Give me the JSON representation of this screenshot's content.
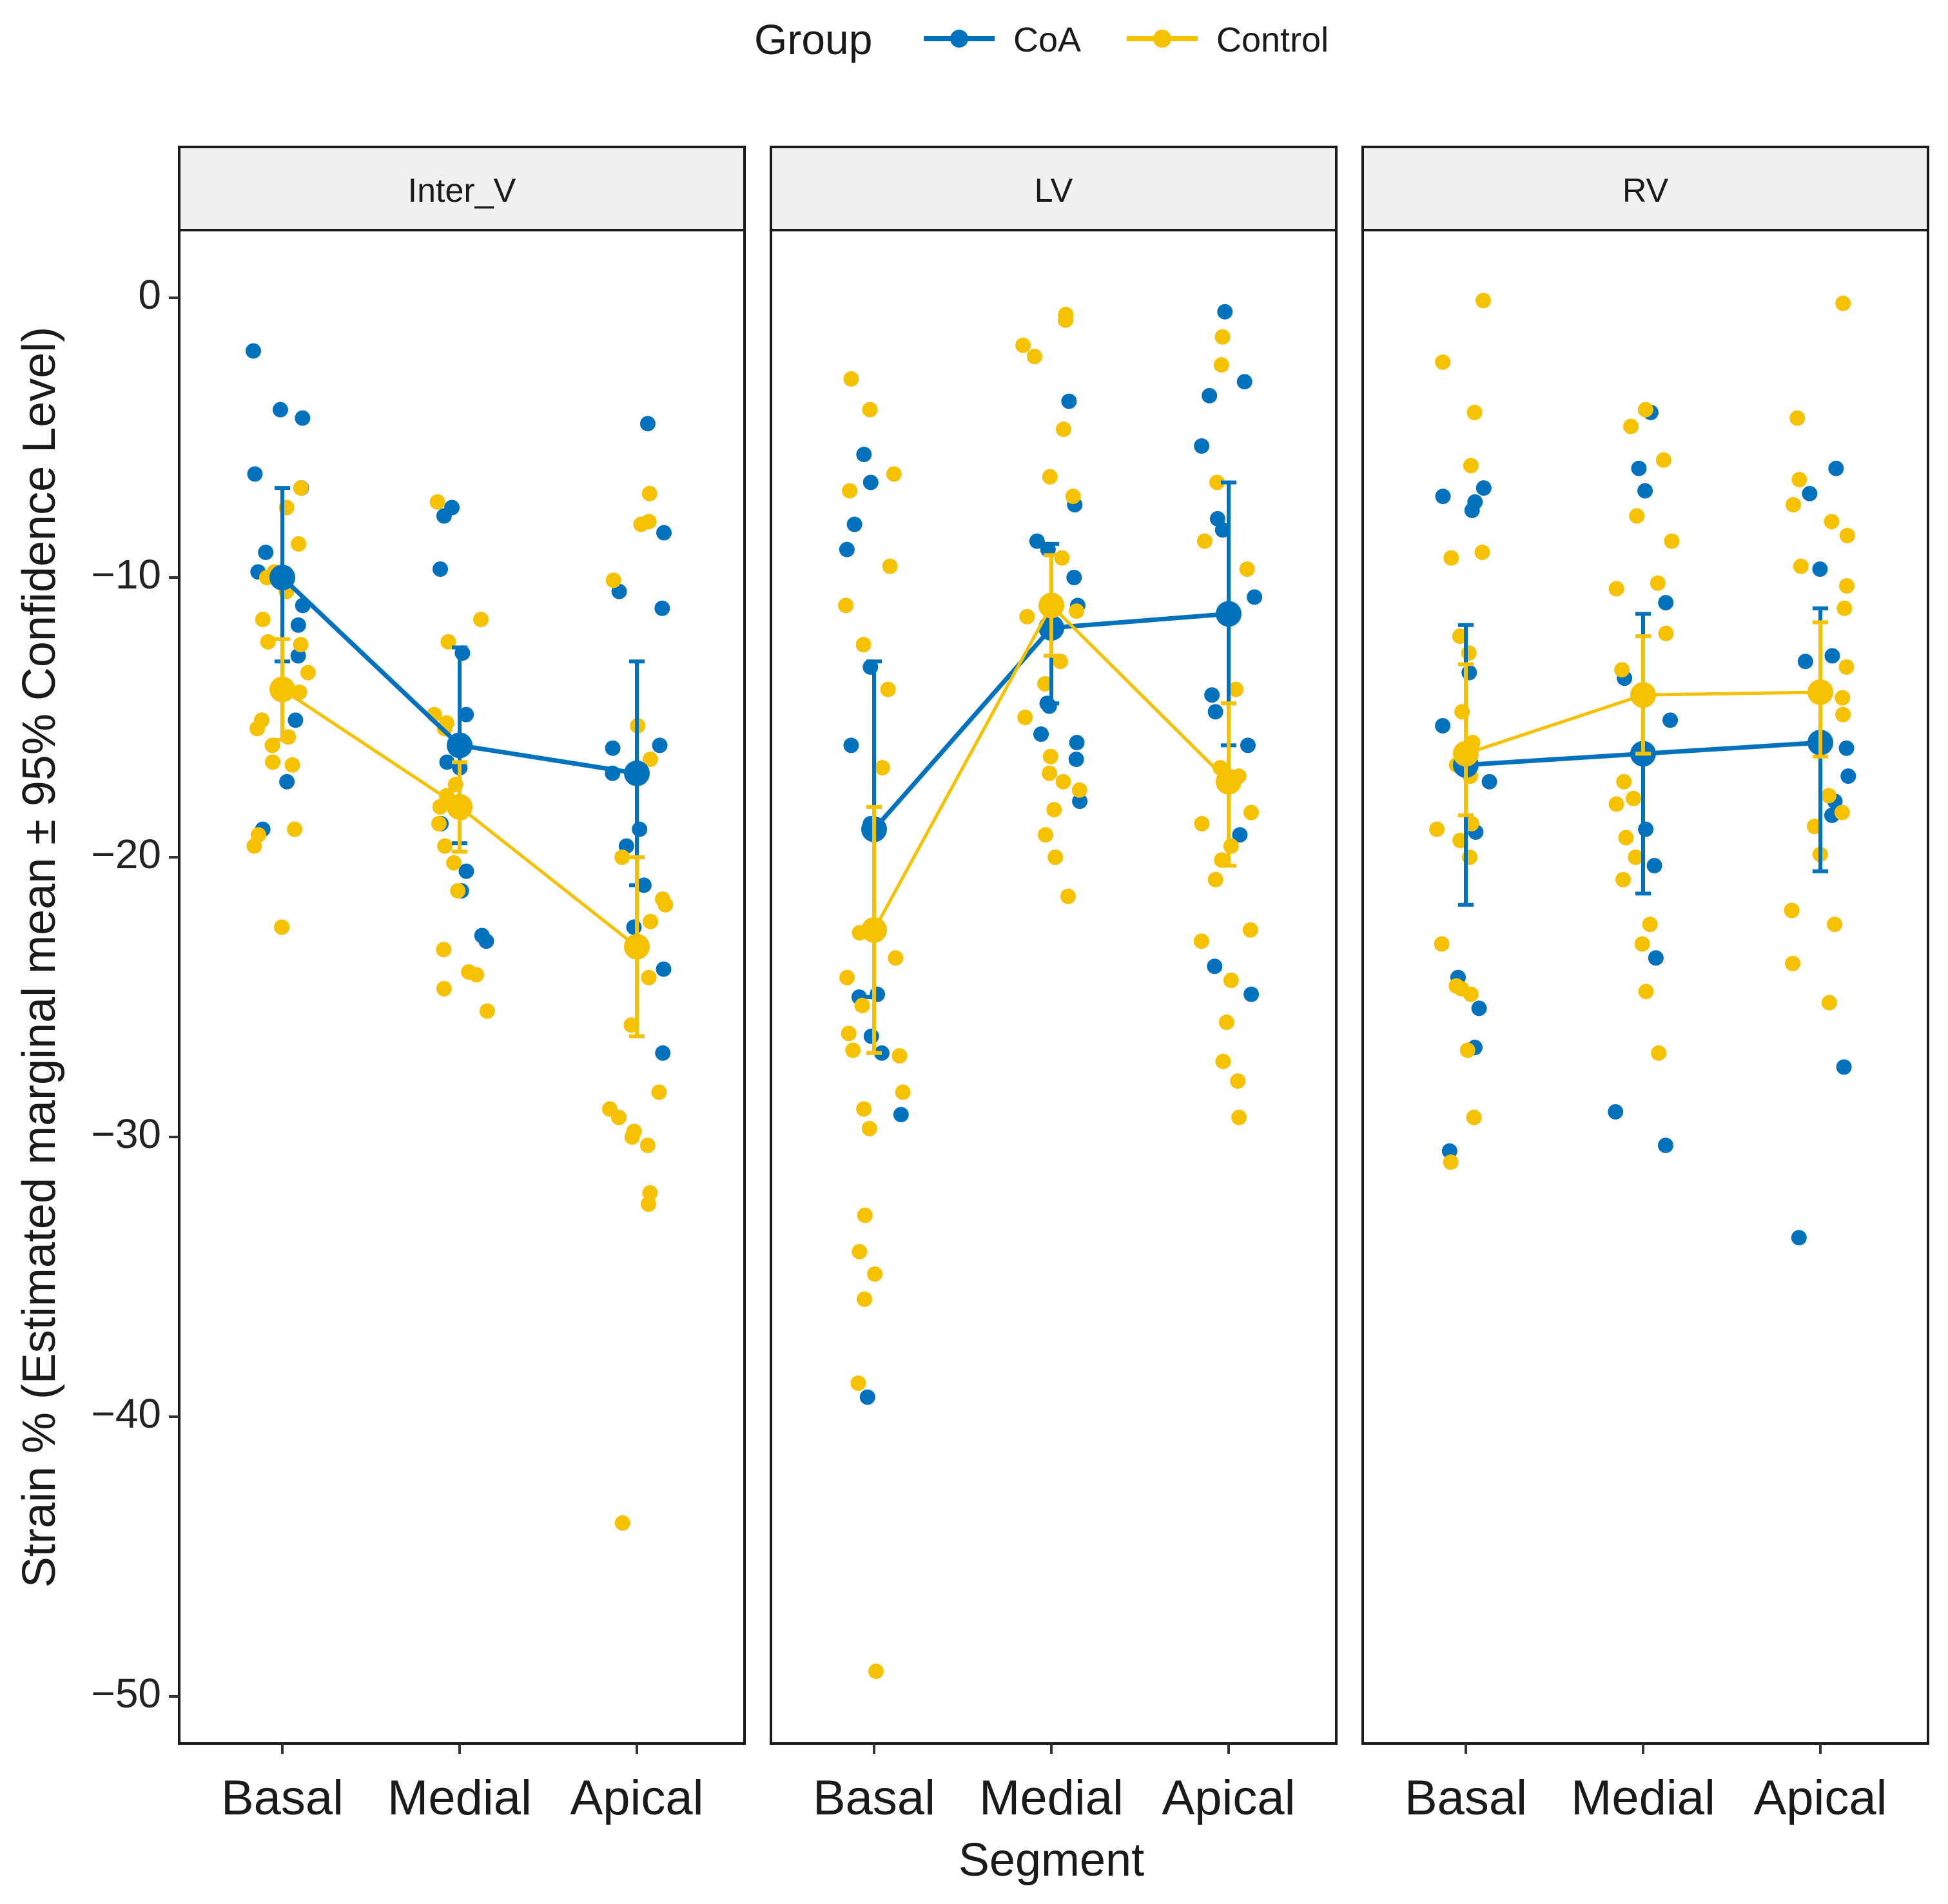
{
  "chart_data": {
    "type": "scatter",
    "title": "",
    "xlabel": "Segment",
    "ylabel": "Strain % (Estimated marginal mean ± 95% Confidence Level)",
    "ylim": [
      -52.5,
      2.5
    ],
    "yticks": [
      0,
      -10,
      -20,
      -30,
      -40,
      -50
    ],
    "ytick_labels": [
      "0",
      "−10",
      "−20",
      "−30",
      "−40",
      "−50"
    ],
    "grid": false,
    "legend": {
      "title": "Group",
      "position": "top",
      "entries": [
        "CoA",
        "Control"
      ]
    },
    "categories": [
      "Basal",
      "Medial",
      "Apical"
    ],
    "colors": {
      "CoA": "#0072bd",
      "Control": "#f5c100"
    },
    "facets": [
      {
        "name": "Inter_V",
        "series": [
          {
            "name": "CoA",
            "means": [
              -10.0,
              -16.0,
              -17.0
            ],
            "lower": [
              -13.0,
              -19.5,
              -21.0
            ],
            "upper": [
              -6.8,
              -12.5,
              -13.0
            ],
            "points": [
              [
                -1.9,
                -4.0,
                -4.3,
                -6.3,
                -6.8,
                -9.1,
                -9.8,
                -11.0,
                -11.7,
                -12.8,
                -15.1,
                -17.3,
                -19.0
              ],
              [
                -7.8,
                -7.5,
                -9.7,
                -12.7,
                -14.9,
                -16.6,
                -16.8,
                -18.8,
                -20.5,
                -21.2,
                -22.8,
                -23.0
              ],
              [
                -4.5,
                -8.4,
                -10.5,
                -11.1,
                -16.0,
                -16.1,
                -17.0,
                -19.0,
                -19.6,
                -21.0,
                -22.5,
                -24.0,
                -27.0
              ]
            ]
          },
          {
            "name": "Control",
            "means": [
              -14.0,
              -18.2,
              -23.2
            ],
            "lower": [
              -15.8,
              -19.8,
              -26.4
            ],
            "upper": [
              -12.2,
              -16.6,
              -20.0
            ],
            "points": [
              [
                -6.8,
                -7.5,
                -8.8,
                -9.8,
                -10.0,
                -10.5,
                -11.5,
                -12.3,
                -12.4,
                -13.4,
                -14.1,
                -15.1,
                -15.4,
                -15.7,
                -16.0,
                -16.6,
                -16.7,
                -19.0,
                -19.2,
                -19.6,
                -22.5
              ],
              [
                -7.3,
                -11.5,
                -12.3,
                -14.9,
                -15.2,
                -15.4,
                -17.4,
                -17.8,
                -18.2,
                -18.4,
                -18.8,
                -19.6,
                -20.2,
                -21.2,
                -23.3,
                -24.1,
                -24.2,
                -24.7,
                -25.5
              ],
              [
                -7.0,
                -8.0,
                -8.1,
                -10.1,
                -15.3,
                -16.5,
                -20.0,
                -21.5,
                -21.7,
                -22.3,
                -24.3,
                -26.0,
                -28.4,
                -29.0,
                -29.3,
                -29.8,
                -30.0,
                -30.3,
                -32.0,
                -32.4,
                -43.8
              ]
            ]
          }
        ]
      },
      {
        "name": "LV",
        "series": [
          {
            "name": "CoA",
            "means": [
              -19.0,
              -11.8,
              -11.3
            ],
            "lower": [
              -25.0,
              -14.5,
              -16.0
            ],
            "upper": [
              -13.0,
              -8.8,
              -6.6
            ],
            "points": [
              [
                -5.6,
                -6.6,
                -8.1,
                -9.0,
                -13.2,
                -16.0,
                -18.8,
                -24.9,
                -25.0,
                -26.4,
                -27.0,
                -29.2,
                -39.3
              ],
              [
                -3.7,
                -7.4,
                -8.7,
                -9.0,
                -10.0,
                -11.0,
                -14.5,
                -14.6,
                -15.6,
                -15.9,
                -16.5,
                -18.0
              ],
              [
                -0.5,
                -3.0,
                -3.5,
                -5.3,
                -7.9,
                -8.3,
                -10.7,
                -14.2,
                -16.0,
                -19.2,
                -23.9,
                -24.9,
                -14.8
              ]
            ]
          },
          {
            "name": "Control",
            "means": [
              -22.6,
              -11.0,
              -17.3
            ],
            "lower": [
              -27.0,
              -12.8,
              -20.3
            ],
            "upper": [
              -18.2,
              -9.2,
              -14.5
            ],
            "points": [
              [
                -2.9,
                -4.0,
                -6.3,
                -6.9,
                -9.6,
                -11.0,
                -12.4,
                -14.0,
                -16.8,
                -22.7,
                -23.6,
                -24.3,
                -25.3,
                -26.3,
                -26.9,
                -27.1,
                -28.4,
                -29.0,
                -29.7,
                -32.8,
                -34.1,
                -34.9,
                -35.8,
                -38.8,
                -49.1
              ],
              [
                -0.6,
                -0.8,
                -1.7,
                -2.1,
                -4.7,
                -6.4,
                -7.1,
                -9.3,
                -11.2,
                -11.4,
                -13.0,
                -13.8,
                -15.0,
                -16.4,
                -17.0,
                -17.3,
                -17.6,
                -18.3,
                -19.2,
                -20.0,
                -21.4
              ],
              [
                -1.4,
                -2.4,
                -6.6,
                -8.7,
                -9.7,
                -14.0,
                -16.8,
                -17.1,
                -18.4,
                -18.8,
                -19.6,
                -20.1,
                -20.8,
                -22.6,
                -23.0,
                -24.4,
                -25.9,
                -27.3,
                -28.0,
                -29.3
              ]
            ]
          }
        ]
      },
      {
        "name": "RV",
        "series": [
          {
            "name": "CoA",
            "means": [
              -16.7,
              -16.3,
              -15.9
            ],
            "lower": [
              -21.7,
              -21.3,
              -20.5
            ],
            "upper": [
              -11.7,
              -11.3,
              -11.1
            ],
            "points": [
              [
                -6.8,
                -7.1,
                -7.3,
                -7.6,
                -13.4,
                -15.3,
                -17.3,
                -19.1,
                -24.3,
                -25.4,
                -26.8,
                -30.5
              ],
              [
                -4.1,
                -6.1,
                -6.9,
                -10.9,
                -13.6,
                -15.1,
                -19.0,
                -20.3,
                -23.6,
                -29.1,
                -30.3
              ],
              [
                -6.1,
                -7.0,
                -9.7,
                -12.8,
                -13.0,
                -16.1,
                -17.1,
                -18.0,
                -18.5,
                -27.5,
                -33.6
              ]
            ]
          },
          {
            "name": "Control",
            "means": [
              -16.3,
              -14.2,
              -14.1
            ],
            "lower": [
              -18.5,
              -16.3,
              -16.4
            ],
            "upper": [
              -13.1,
              -12.1,
              -11.6
            ],
            "points": [
              [
                -0.1,
                -2.3,
                -4.1,
                -6.0,
                -9.1,
                -9.3,
                -12.1,
                -12.7,
                -14.8,
                -15.9,
                -16.7,
                -17.1,
                -18.8,
                -19.0,
                -19.4,
                -20.0,
                -23.1,
                -24.6,
                -24.7,
                -24.9,
                -26.9,
                -29.3,
                -30.9
              ],
              [
                -4.0,
                -4.6,
                -5.8,
                -7.8,
                -8.7,
                -10.2,
                -10.4,
                -12.0,
                -13.3,
                -17.3,
                -17.9,
                -18.1,
                -19.3,
                -20.0,
                -20.8,
                -22.4,
                -23.1,
                -24.8,
                -27.0
              ],
              [
                -0.2,
                -4.3,
                -6.5,
                -7.4,
                -8.0,
                -8.5,
                -9.6,
                -10.3,
                -11.1,
                -13.2,
                -14.3,
                -14.9,
                -17.8,
                -18.4,
                -18.9,
                -19.9,
                -21.9,
                -22.4,
                -23.8,
                -25.2
              ]
            ]
          }
        ]
      }
    ]
  }
}
